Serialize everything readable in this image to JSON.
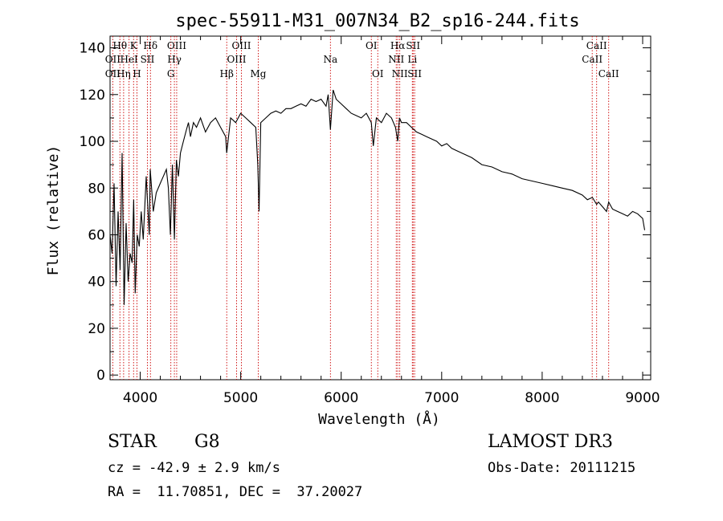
{
  "chart_data": {
    "type": "line",
    "title": "spec-55911-M31_007N34_B2_sp16-244.fits",
    "xlabel": "Wavelength (Å)",
    "ylabel": "Flux (relative)",
    "xlim": [
      3700,
      9080
    ],
    "ylim": [
      -2,
      145
    ],
    "xticks": [
      4000,
      5000,
      6000,
      7000,
      8000,
      9000
    ],
    "yticks": [
      0,
      20,
      40,
      60,
      80,
      100,
      120,
      140
    ],
    "series": [
      {
        "name": "flux",
        "x": [
          3700,
          3720,
          3740,
          3760,
          3780,
          3800,
          3820,
          3840,
          3860,
          3880,
          3900,
          3920,
          3935,
          3950,
          3970,
          3990,
          4010,
          4030,
          4060,
          4090,
          4100,
          4130,
          4160,
          4200,
          4230,
          4260,
          4280,
          4300,
          4320,
          4340,
          4360,
          4380,
          4400,
          4430,
          4460,
          4480,
          4500,
          4530,
          4560,
          4600,
          4650,
          4700,
          4750,
          4800,
          4850,
          4861,
          4900,
          4950,
          5000,
          5050,
          5100,
          5150,
          5170,
          5183,
          5200,
          5250,
          5300,
          5350,
          5400,
          5450,
          5500,
          5550,
          5600,
          5650,
          5700,
          5750,
          5800,
          5850,
          5870,
          5893,
          5920,
          5950,
          6000,
          6050,
          6100,
          6150,
          6200,
          6250,
          6300,
          6320,
          6350,
          6400,
          6450,
          6500,
          6540,
          6563,
          6580,
          6600,
          6650,
          6700,
          6750,
          6800,
          6850,
          6900,
          6950,
          7000,
          7050,
          7100,
          7150,
          7200,
          7300,
          7400,
          7500,
          7600,
          7700,
          7800,
          7900,
          8000,
          8100,
          8200,
          8300,
          8400,
          8450,
          8500,
          8542,
          8560,
          8600,
          8640,
          8662,
          8700,
          8750,
          8800,
          8850,
          8900,
          8950,
          9000,
          9020
        ],
        "values": [
          60,
          52,
          82,
          38,
          70,
          45,
          95,
          30,
          65,
          40,
          52,
          48,
          75,
          35,
          60,
          55,
          70,
          58,
          85,
          60,
          88,
          70,
          78,
          82,
          85,
          88,
          80,
          60,
          90,
          58,
          92,
          85,
          95,
          100,
          105,
          108,
          102,
          108,
          106,
          110,
          104,
          108,
          110,
          106,
          102,
          95,
          110,
          108,
          112,
          110,
          108,
          106,
          90,
          70,
          108,
          110,
          112,
          113,
          112,
          114,
          114,
          115,
          116,
          115,
          118,
          117,
          118,
          115,
          120,
          105,
          122,
          118,
          116,
          114,
          112,
          111,
          110,
          112,
          108,
          98,
          110,
          108,
          112,
          110,
          106,
          100,
          110,
          108,
          108,
          106,
          104,
          103,
          102,
          101,
          100,
          98,
          99,
          97,
          96,
          95,
          93,
          90,
          89,
          87,
          86,
          84,
          83,
          82,
          81,
          80,
          79,
          77,
          75,
          76,
          73,
          74,
          72,
          70,
          74,
          71,
          70,
          69,
          68,
          70,
          69,
          67,
          62
        ]
      }
    ],
    "line_labels": [
      {
        "label": "Hθ",
        "x": 3798,
        "row": 1
      },
      {
        "label": "K",
        "x": 3934,
        "row": 1
      },
      {
        "label": "Hδ",
        "x": 4102,
        "row": 1
      },
      {
        "label": "OIII",
        "x": 4363,
        "row": 1
      },
      {
        "label": "OIII",
        "x": 5007,
        "row": 1
      },
      {
        "label": "OI",
        "x": 6300,
        "row": 1
      },
      {
        "label": "Hα",
        "x": 6563,
        "row": 1
      },
      {
        "label": "SII",
        "x": 6716,
        "row": 1
      },
      {
        "label": "CaII",
        "x": 8542,
        "row": 1
      },
      {
        "label": "OII",
        "x": 3727,
        "row": 2
      },
      {
        "label": "HeI",
        "x": 3889,
        "row": 2
      },
      {
        "label": "SII",
        "x": 4072,
        "row": 2
      },
      {
        "label": "Hγ",
        "x": 4340,
        "row": 2
      },
      {
        "label": "OIII",
        "x": 4959,
        "row": 2
      },
      {
        "label": "Na",
        "x": 5893,
        "row": 2
      },
      {
        "label": "NII",
        "x": 6548,
        "row": 2
      },
      {
        "label": "Li",
        "x": 6708,
        "row": 2
      },
      {
        "label": "CaII",
        "x": 8498,
        "row": 2
      },
      {
        "label": "OII",
        "x": 3727,
        "row": 3
      },
      {
        "label": "Hη",
        "x": 3835,
        "row": 3
      },
      {
        "label": "H",
        "x": 3968,
        "row": 3
      },
      {
        "label": "G",
        "x": 4305,
        "row": 3
      },
      {
        "label": "Hβ",
        "x": 4861,
        "row": 3
      },
      {
        "label": "Mg",
        "x": 5175,
        "row": 3
      },
      {
        "label": "OI",
        "x": 6364,
        "row": 3
      },
      {
        "label": "NII",
        "x": 6583,
        "row": 3
      },
      {
        "label": "SII",
        "x": 6731,
        "row": 3
      },
      {
        "label": "CaII",
        "x": 8662,
        "row": 3
      }
    ]
  },
  "info": {
    "object_class": "STAR",
    "subclass": "G8",
    "survey": "LAMOST DR3",
    "cz": "cz = -42.9 ± 2.9 km/s",
    "obs_date": "Obs-Date: 20111215",
    "coords": "RA =  11.70851, DEC =  37.20027"
  },
  "colors": {
    "axis": "#000000",
    "spectrum": "#000000",
    "line_marker": "#cc0000"
  }
}
